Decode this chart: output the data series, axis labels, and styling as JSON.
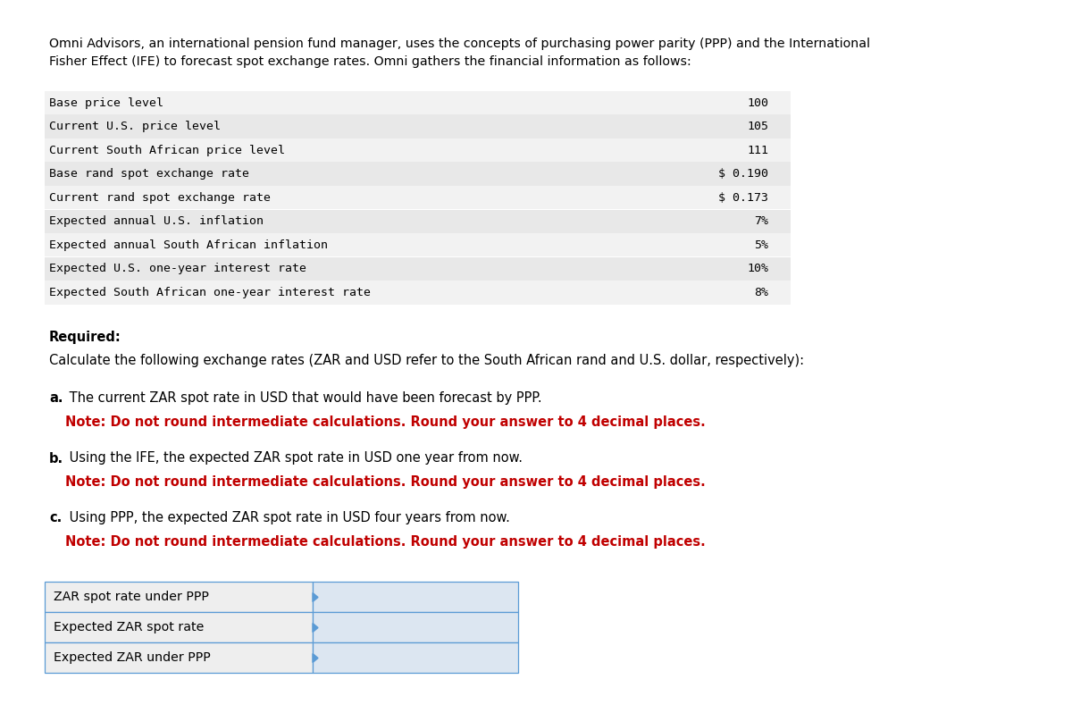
{
  "bg_color": "#ffffff",
  "intro_line1": "Omni Advisors, an international pension fund manager, uses the concepts of purchasing power parity (PPP) and the International",
  "intro_line2": "Fisher Effect (IFE) to forecast spot exchange rates. Omni gathers the financial information as follows:",
  "data_rows": [
    {
      "label": "Base price level",
      "value": "100"
    },
    {
      "label": "Current U.S. price level",
      "value": "105"
    },
    {
      "label": "Current South African price level",
      "value": "111"
    },
    {
      "label": "Base rand spot exchange rate",
      "value": "$ 0.190"
    },
    {
      "label": "Current rand spot exchange rate",
      "value": "$ 0.173"
    },
    {
      "label": "Expected annual U.S. inflation",
      "value": "7%"
    },
    {
      "label": "Expected annual South African inflation",
      "value": "5%"
    },
    {
      "label": "Expected U.S. one-year interest rate",
      "value": "10%"
    },
    {
      "label": "Expected South African one-year interest rate",
      "value": "8%"
    }
  ],
  "row_bg_even": "#f2f2f2",
  "row_bg_odd": "#e8e8e8",
  "required_header": "Required:",
  "required_body": "Calculate the following exchange rates (ZAR and USD refer to the South African rand and U.S. dollar, respectively):",
  "qa_label": "a.",
  "qa_text": " The current ZAR spot rate in USD that would have been forecast by PPP.",
  "qa_note": "Note: Do not round intermediate calculations. Round your answer to 4 decimal places.",
  "qb_label": "b.",
  "qb_text": " Using the IFE, the expected ZAR spot rate in USD one year from now.",
  "qb_note": "Note: Do not round intermediate calculations. Round your answer to 4 decimal places.",
  "qc_label": "c.",
  "qc_text": " Using PPP, the expected ZAR spot rate in USD four years from now.",
  "qc_note": "Note: Do not round intermediate calculations. Round your answer to 4 decimal places.",
  "table_rows": [
    "ZAR spot rate under PPP",
    "Expected ZAR spot rate",
    "Expected ZAR under PPP"
  ],
  "table_label_bg": "#eeeeee",
  "table_input_bg": "#dce6f1",
  "table_border": "#5b9bd5",
  "red_color": "#c00000",
  "text_color": "#000000"
}
